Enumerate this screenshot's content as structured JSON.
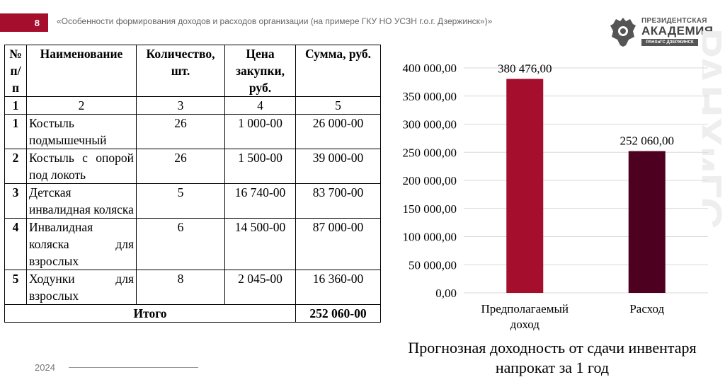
{
  "header": {
    "slide_number": "8",
    "title": "«Особенности формирования доходов и расходов организации (на примере ГКУ НО УСЗН г.о.г. Дзержинск»)»"
  },
  "logo": {
    "line1": "ПРЕЗИДЕНТСКАЯ",
    "line2": "АКАДЕМИЯ",
    "line3": "РАНХиГС  ДЗЕРЖИНСК"
  },
  "table": {
    "columns": [
      "№ п/п",
      "Наименование",
      "Количество, шт.",
      "Цена закупки, руб.",
      "Сумма, руб."
    ],
    "column_numbers": [
      "1",
      "2",
      "3",
      "4",
      "5"
    ],
    "rows": [
      [
        "1",
        "Костыль подмышечный",
        "26",
        "1 000-00",
        "26 000-00"
      ],
      [
        "2",
        "Костыль с опорой под локоть",
        "26",
        "1 500-00",
        "39 000-00"
      ],
      [
        "3",
        "Детская инвалидная коляска",
        "5",
        "16 740-00",
        "83 700-00"
      ],
      [
        "4",
        "Инвалидная коляска для взрослых",
        "6",
        "14 500-00",
        "87 000-00"
      ],
      [
        "5",
        "Ходунки для взрослых",
        "8",
        "2 045-00",
        "16 360-00"
      ]
    ],
    "total_label": "Итого",
    "total_value": "252 060-00"
  },
  "chart_data": {
    "type": "bar",
    "categories": [
      "Предполагаемый доход",
      "Расход"
    ],
    "values": [
      380476,
      252060
    ],
    "data_labels": [
      "380 476,00",
      "252 060,00"
    ],
    "colors": [
      "#a50f2d",
      "#4e0020"
    ],
    "y_ticks": [
      "0,00",
      "50 000,00",
      "100 000,00",
      "150 000,00",
      "200 000,00",
      "250 000,00",
      "300 000,00",
      "350 000,00",
      "400 000,00"
    ],
    "ylim": [
      0,
      400000
    ],
    "grid": true,
    "caption": "Прогнозная доходность от сдачи инвентаря напрокат за 1 год"
  },
  "footer": {
    "year": "2024"
  },
  "colors": {
    "accent": "#a50f2d"
  }
}
